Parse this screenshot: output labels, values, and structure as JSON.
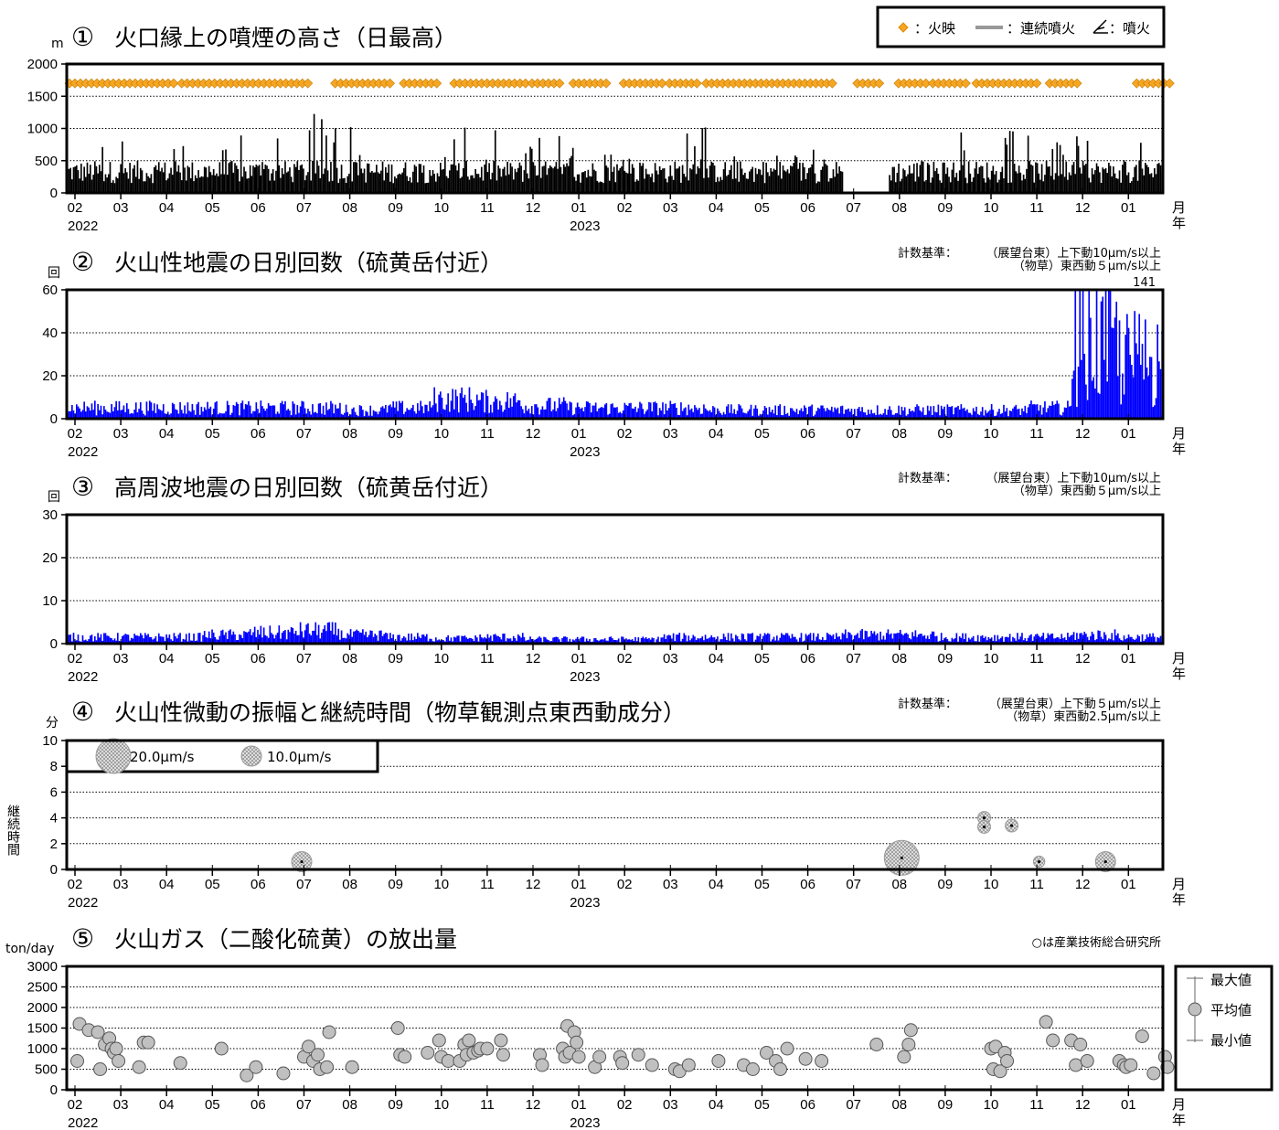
{
  "chart_data": [
    {
      "type": "bar",
      "number": "①",
      "title": "火口縁上の噴煙の高さ（日最高）",
      "ylabel": "m",
      "ylim": [
        0,
        2000
      ],
      "yticks": [
        "0",
        "500",
        "1000",
        "1500",
        "2000"
      ],
      "legend": {
        "glow": "：火映",
        "continuous": "：連続噴火",
        "eruption": "：噴火"
      },
      "series": [
        {
          "name": "噴煙の高さ",
          "color": "#000000",
          "monthly_max": [
            1000,
            1200,
            1000,
            1200,
            850,
            1300,
            1100,
            700,
            1100,
            1000,
            900,
            800,
            700,
            1100,
            650,
            600,
            700,
            0,
            1000,
            1000,
            1000,
            1000,
            1000,
            1000
          ]
        },
        {
          "name": "火映",
          "color": "#f5a623",
          "y": 1700,
          "active_ranges": [
            [
              0.0,
              2.3
            ],
            [
              2.45,
              5.3
            ],
            [
              5.8,
              7.1
            ],
            [
              7.3,
              8.1
            ],
            [
              8.4,
              10.0
            ],
            [
              10.1,
              10.8
            ],
            [
              11.0,
              11.8
            ],
            [
              12.1,
              13.0
            ],
            [
              13.1,
              13.8
            ],
            [
              13.9,
              16.7
            ],
            [
              17.2,
              17.7
            ],
            [
              18.1,
              18.7
            ],
            [
              18.85,
              19.6
            ],
            [
              19.8,
              21.2
            ],
            [
              21.4,
              22.0
            ],
            [
              23.3,
              24.1
            ]
          ]
        }
      ],
      "x_months": [
        "02",
        "03",
        "04",
        "05",
        "06",
        "07",
        "08",
        "09",
        "10",
        "11",
        "12",
        "01",
        "02",
        "03",
        "04",
        "05",
        "06",
        "07",
        "08",
        "09",
        "10",
        "11",
        "12",
        "01"
      ],
      "year_labels": [
        "2022",
        "2023"
      ],
      "axis_unit": [
        "月",
        "年"
      ]
    },
    {
      "type": "bar",
      "number": "②",
      "title": "火山性地震の日別回数（硫黄岳付近）",
      "ylabel": "回",
      "ylim": [
        0,
        60
      ],
      "yticks": [
        "0",
        "20",
        "40",
        "60"
      ],
      "criteria_label": "計数基準：",
      "criteria": [
        "（展望台東）上下動10μm/s以上",
        "（物草）東西動５μm/s以上"
      ],
      "annotation": "141",
      "series": [
        {
          "name": "火山性地震",
          "color": "#0000ff",
          "monthly_mean": [
            5,
            5,
            5,
            5,
            5,
            5,
            4,
            5,
            9,
            8,
            6,
            5,
            5,
            5,
            4,
            4,
            4,
            4,
            4,
            4,
            4,
            5,
            25,
            20
          ]
        }
      ],
      "x_months": [
        "02",
        "03",
        "04",
        "05",
        "06",
        "07",
        "08",
        "09",
        "10",
        "11",
        "12",
        "01",
        "02",
        "03",
        "04",
        "05",
        "06",
        "07",
        "08",
        "09",
        "10",
        "11",
        "12",
        "01"
      ],
      "year_labels": [
        "2022",
        "2023"
      ],
      "axis_unit": [
        "月",
        "年"
      ]
    },
    {
      "type": "bar",
      "number": "③",
      "title": "高周波地震の日別回数（硫黄岳付近）",
      "ylabel": "回",
      "ylim": [
        0,
        30
      ],
      "yticks": [
        "0",
        "10",
        "20",
        "30"
      ],
      "criteria_label": "計数基準：",
      "criteria": [
        "（展望台東）上下動10μm/s以上",
        "（物草）東西動５μm/s以上"
      ],
      "series": [
        {
          "name": "高周波地震",
          "color": "#0000ff",
          "monthly_mean": [
            1.5,
            1.5,
            1.5,
            2,
            2.5,
            3,
            2,
            1.5,
            1.2,
            1.5,
            1,
            1,
            1,
            1.5,
            1.5,
            1.5,
            1.5,
            2,
            2,
            1.5,
            1.5,
            1.5,
            2,
            1.5
          ]
        }
      ],
      "x_months": [
        "02",
        "03",
        "04",
        "05",
        "06",
        "07",
        "08",
        "09",
        "10",
        "11",
        "12",
        "01",
        "02",
        "03",
        "04",
        "05",
        "06",
        "07",
        "08",
        "09",
        "10",
        "11",
        "12",
        "01"
      ],
      "year_labels": [
        "2022",
        "2023"
      ],
      "axis_unit": [
        "月",
        "年"
      ]
    },
    {
      "type": "scatter",
      "number": "④",
      "title": "火山性微動の振幅と継続時間（物草観測点東西動成分）",
      "ylabel": "分",
      "y_axis_title": "継続時間",
      "ylim": [
        0,
        10
      ],
      "yticks": [
        "0",
        "2",
        "4",
        "6",
        "8",
        "10"
      ],
      "criteria_label": "計数基準：",
      "criteria": [
        "（展望台東）上下動５μm/s以上",
        "（物草）東西動2.5μm/s以上"
      ],
      "size_legend": [
        "20.0μm/s",
        "10.0μm/s"
      ],
      "points": [
        {
          "month_index": 4.95,
          "duration": 0.6,
          "amplitude": 10.0
        },
        {
          "month_index": 18.05,
          "duration": 0.9,
          "amplitude": 20.0
        },
        {
          "month_index": 19.85,
          "duration": 4.0,
          "amplitude": 5.0
        },
        {
          "month_index": 19.85,
          "duration": 3.3,
          "amplitude": 5.0
        },
        {
          "month_index": 20.45,
          "duration": 3.4,
          "amplitude": 5.0
        },
        {
          "month_index": 21.05,
          "duration": 0.6,
          "amplitude": 4.0
        },
        {
          "month_index": 22.5,
          "duration": 0.6,
          "amplitude": 10.0
        }
      ],
      "x_months": [
        "02",
        "03",
        "04",
        "05",
        "06",
        "07",
        "08",
        "09",
        "10",
        "11",
        "12",
        "01",
        "02",
        "03",
        "04",
        "05",
        "06",
        "07",
        "08",
        "09",
        "10",
        "11",
        "12",
        "01"
      ],
      "year_labels": [
        "2022",
        "2023"
      ],
      "axis_unit": [
        "月",
        "年"
      ]
    },
    {
      "type": "scatter",
      "number": "⑤",
      "title": "火山ガス（二酸化硫黄）の放出量",
      "ylabel": "ton/day",
      "ylim": [
        0,
        3000
      ],
      "yticks": [
        "0",
        "500",
        "1000",
        "1500",
        "2000",
        "2500",
        "3000"
      ],
      "note": "○は産業技術総合研究所",
      "legend": [
        "最大値",
        "平均値",
        "最小値"
      ],
      "points": [
        [
          0.1,
          1600
        ],
        [
          0.05,
          700
        ],
        [
          0.3,
          1450
        ],
        [
          0.5,
          1400
        ],
        [
          0.55,
          500
        ],
        [
          0.65,
          1100
        ],
        [
          0.75,
          1250
        ],
        [
          0.8,
          1000
        ],
        [
          0.85,
          900
        ],
        [
          0.9,
          1000
        ],
        [
          0.95,
          700
        ],
        [
          1.4,
          550
        ],
        [
          1.5,
          1150
        ],
        [
          1.6,
          1150
        ],
        [
          2.3,
          650
        ],
        [
          3.2,
          1000
        ],
        [
          3.75,
          350
        ],
        [
          3.95,
          550
        ],
        [
          4.55,
          400
        ],
        [
          5.0,
          800
        ],
        [
          5.1,
          1050
        ],
        [
          5.2,
          700
        ],
        [
          5.3,
          850
        ],
        [
          5.35,
          500
        ],
        [
          5.5,
          550
        ],
        [
          5.55,
          1400
        ],
        [
          6.05,
          550
        ],
        [
          7.05,
          1500
        ],
        [
          7.1,
          850
        ],
        [
          7.2,
          800
        ],
        [
          7.7,
          900
        ],
        [
          7.95,
          1200
        ],
        [
          8.0,
          800
        ],
        [
          8.15,
          700
        ],
        [
          8.4,
          700
        ],
        [
          8.5,
          1100
        ],
        [
          8.55,
          850
        ],
        [
          8.6,
          1200
        ],
        [
          8.7,
          900
        ],
        [
          8.8,
          950
        ],
        [
          8.85,
          1000
        ],
        [
          9.0,
          1000
        ],
        [
          9.3,
          1200
        ],
        [
          9.35,
          850
        ],
        [
          10.15,
          850
        ],
        [
          10.2,
          600
        ],
        [
          10.75,
          1550
        ],
        [
          10.65,
          1000
        ],
        [
          10.7,
          800
        ],
        [
          10.8,
          900
        ],
        [
          10.9,
          1400
        ],
        [
          10.95,
          1150
        ],
        [
          11.0,
          800
        ],
        [
          11.35,
          550
        ],
        [
          11.45,
          800
        ],
        [
          11.9,
          800
        ],
        [
          11.95,
          650
        ],
        [
          12.3,
          850
        ],
        [
          12.6,
          600
        ],
        [
          13.1,
          500
        ],
        [
          13.2,
          450
        ],
        [
          13.4,
          600
        ],
        [
          14.05,
          700
        ],
        [
          14.6,
          600
        ],
        [
          14.8,
          500
        ],
        [
          15.1,
          900
        ],
        [
          15.3,
          700
        ],
        [
          15.4,
          500
        ],
        [
          15.55,
          1000
        ],
        [
          15.95,
          750
        ],
        [
          16.3,
          700
        ],
        [
          17.5,
          1100
        ],
        [
          18.1,
          800
        ],
        [
          18.2,
          1100
        ],
        [
          18.25,
          1450
        ],
        [
          20.0,
          1000
        ],
        [
          20.05,
          500
        ],
        [
          20.1,
          1050
        ],
        [
          20.2,
          450
        ],
        [
          20.3,
          900
        ],
        [
          20.35,
          700
        ],
        [
          21.2,
          1650
        ],
        [
          21.35,
          1200
        ],
        [
          21.75,
          1200
        ],
        [
          21.85,
          600
        ],
        [
          21.95,
          1100
        ],
        [
          22.1,
          700
        ],
        [
          22.8,
          700
        ],
        [
          22.9,
          600
        ],
        [
          22.95,
          550
        ],
        [
          23.05,
          600
        ],
        [
          23.3,
          1300
        ],
        [
          23.55,
          400
        ],
        [
          23.8,
          800
        ],
        [
          23.85,
          550
        ]
      ],
      "x_months": [
        "02",
        "03",
        "04",
        "05",
        "06",
        "07",
        "08",
        "09",
        "10",
        "11",
        "12",
        "01",
        "02",
        "03",
        "04",
        "05",
        "06",
        "07",
        "08",
        "09",
        "10",
        "11",
        "12",
        "01"
      ],
      "year_labels": [
        "2022",
        "2023"
      ],
      "axis_unit": [
        "月",
        "年"
      ]
    }
  ]
}
